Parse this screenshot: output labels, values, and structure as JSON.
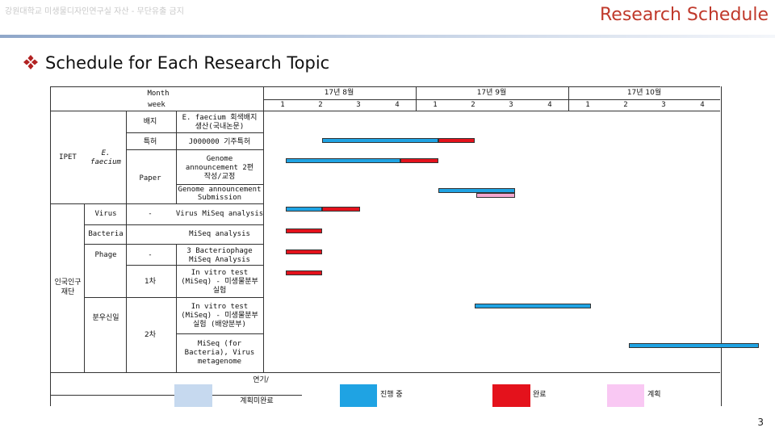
{
  "header": {
    "watermark": "강원대학교 미생물디자인연구실 자산 - 무단유출 금지",
    "title": "Research Schedule"
  },
  "section": {
    "bullet_icon": "diamond-four-bullet-icon",
    "title": "Schedule for Each Research Topic"
  },
  "table": {
    "month_label": "Month",
    "week_label": "week",
    "months": [
      "17년 8월",
      "17년 9월",
      "17년 10월"
    ],
    "weeks": [
      "1",
      "2",
      "3",
      "4",
      "1",
      "2",
      "3",
      "4",
      "1",
      "2",
      "3",
      "4"
    ],
    "groups": {
      "ipet": "IPET",
      "e_faecium_1": "E.",
      "e_faecium_2": "faecium",
      "institute_1": "인국인구",
      "institute_2": "재단"
    },
    "subgroups": {
      "strain": "배지",
      "patent": "특허",
      "paper": "Paper",
      "virus": "Virus",
      "bacteria": "Bacteria",
      "phage": "Phage",
      "analysis": "분우신일"
    },
    "dash": "-",
    "phase1": "1차",
    "phase2": "2차",
    "tasks": {
      "faecium_strain_1": "E. faecium 회색배지",
      "faecium_strain_2": "생산(국내논문)",
      "patent": "J000000 기주특허",
      "genome_paper_1": "Genome",
      "genome_paper_2": "announcement 2편",
      "genome_paper_3": "작성/교정",
      "genome_submit_1": "Genome announcement",
      "genome_submit_2": "Submission",
      "virus": "Virus MiSeq analysis",
      "bacteria": "MiSeq analysis",
      "phage_1": "3 Bacteriophage",
      "phage_2": "MiSeq Analysis",
      "phase1_1": "In vitro test",
      "phase1_2": "(MiSeq) - 미생물분부",
      "phase1_3": "실험",
      "phase2a_1": "In vitro test",
      "phase2a_2": "(MiSeq) - 미생물분부",
      "phase2a_3": "실험 (배양분부)",
      "phase2b_1": "MiSeq (for",
      "phase2b_2": "Bacteria), Virus",
      "phase2b_3": "metagenome"
    },
    "bars": [
      {
        "row": "patent",
        "color": "blue",
        "start_week": 1.55,
        "end_week": 4.6
      },
      {
        "row": "patent",
        "color": "red",
        "start_week": 4.6,
        "end_week": 5.55
      },
      {
        "row": "genome_paper",
        "color": "blue",
        "start_week": 0.6,
        "end_week": 3.6
      },
      {
        "row": "genome_paper",
        "color": "red",
        "start_week": 3.6,
        "end_week": 4.6
      },
      {
        "row": "genome_submit",
        "color": "blue",
        "start_week": 4.6,
        "end_week": 6.6
      },
      {
        "row": "genome_submit",
        "color": "pink",
        "start_week": 5.6,
        "end_week": 6.6
      },
      {
        "row": "virus",
        "color": "blue",
        "start_week": 0.6,
        "end_week": 1.55
      },
      {
        "row": "virus",
        "color": "red",
        "start_week": 1.55,
        "end_week": 2.55
      },
      {
        "row": "bacteria",
        "color": "red",
        "start_week": 0.6,
        "end_week": 1.55
      },
      {
        "row": "phage_a",
        "color": "red",
        "start_week": 0.6,
        "end_week": 1.55
      },
      {
        "row": "phage_b",
        "color": "red",
        "start_week": 0.6,
        "end_week": 1.55
      },
      {
        "row": "phase2a",
        "color": "blue",
        "start_week": 5.55,
        "end_week": 8.6
      },
      {
        "row": "phase2b",
        "color": "blue",
        "start_week": 9.6,
        "end_week": 13.0
      }
    ],
    "legend": {
      "delayed_1": "연기/",
      "delayed_2": "계획미완료",
      "in_progress": "진행 중",
      "done": "완료",
      "planned": "계획"
    }
  },
  "colors": {
    "title_red": "#c0392b",
    "in_progress_blue": "#1fa3e3",
    "done_red": "#e4121c",
    "planned_pink": "#f9c8f3",
    "delayed_light_blue": "#c6d9ef"
  },
  "footer": {
    "page_number": "3"
  }
}
